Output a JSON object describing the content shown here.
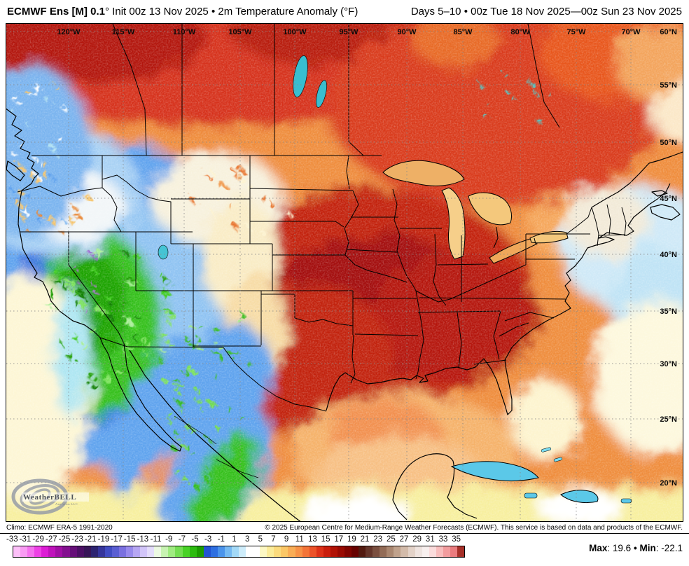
{
  "header": {
    "title_bold": "ECMWF Ens [M] 0.1",
    "title_rest": "° Init 00z 13 Nov 2025 • 2m Temperature Anomaly (°F)",
    "date_range": "Days 5–10 • 00z Tue 18 Nov 2025—00z Sun 23 Nov 2025"
  },
  "map": {
    "top_labels": [
      "120°W",
      "115°W",
      "110°W",
      "105°W",
      "100°W",
      "95°W",
      "90°W",
      "85°W",
      "80°W",
      "75°W",
      "70°W"
    ],
    "right_labels": [
      "60°N",
      "55°N",
      "50°N",
      "45°N",
      "40°N",
      "35°N",
      "30°N",
      "25°N",
      "20°N"
    ]
  },
  "logo": {
    "name": "WeatherBELL",
    "subtitle": "Analytics LLC"
  },
  "footer": {
    "climo": "Climo: ECMWF ERA-5 1991-2020",
    "copyright": "© 2025 European Centre for Medium-Range Weather Forecasts (ECMWF). This service is based on data and products of the ECMWF."
  },
  "colorbar": {
    "tick_labels": [
      "-33",
      "-31",
      "-29",
      "-27",
      "-25",
      "-23",
      "-21",
      "-19",
      "-17",
      "-15",
      "-13",
      "-11",
      "-9",
      "-7",
      "-5",
      "-3",
      "-1",
      "1",
      "3",
      "5",
      "7",
      "9",
      "11",
      "13",
      "15",
      "17",
      "19",
      "21",
      "23",
      "25",
      "27",
      "29",
      "31",
      "33",
      "35"
    ],
    "colors": [
      "#fcc0f8",
      "#f99bf3",
      "#f571ee",
      "#ee41e5",
      "#dd1dd5",
      "#bf13bb",
      "#a110a4",
      "#83108f",
      "#660f79",
      "#4c1065",
      "#371557",
      "#2c2370",
      "#35359b",
      "#414cc2",
      "#5a5ed2",
      "#7a70e0",
      "#988aec",
      "#b6a6f3",
      "#d2c5f9",
      "#e4ddfb",
      "#ecf9e2",
      "#c8f3b2",
      "#a0eb81",
      "#74de52",
      "#48d226",
      "#2cbb0f",
      "#1b9c00",
      "#2353d3",
      "#2e6fe1",
      "#4b94eb",
      "#76baf2",
      "#a3d9f7",
      "#cdecfa",
      "#ffffff",
      "#ffffff",
      "#fdf8c4",
      "#fbec9a",
      "#fbdb7d",
      "#fbc766",
      "#f9ad56",
      "#f79247",
      "#f37438",
      "#ec5229",
      "#dd3118",
      "#c91d0c",
      "#b11205",
      "#990a02",
      "#800400",
      "#670100",
      "#521a10",
      "#64352a",
      "#7a4f3f",
      "#926b56",
      "#aa8770",
      "#c0a28c",
      "#d3bbaa",
      "#e3d2c8",
      "#efe4e0",
      "#f8f0ef",
      "#fbdcdc",
      "#f8bdbd",
      "#f29c9e",
      "#ea7b7e",
      "#a63029"
    ]
  },
  "stats": {
    "max_label": "Max",
    "max_value": "19.6",
    "separator": "•",
    "min_label": "Min",
    "min_value": "-22.1"
  }
}
